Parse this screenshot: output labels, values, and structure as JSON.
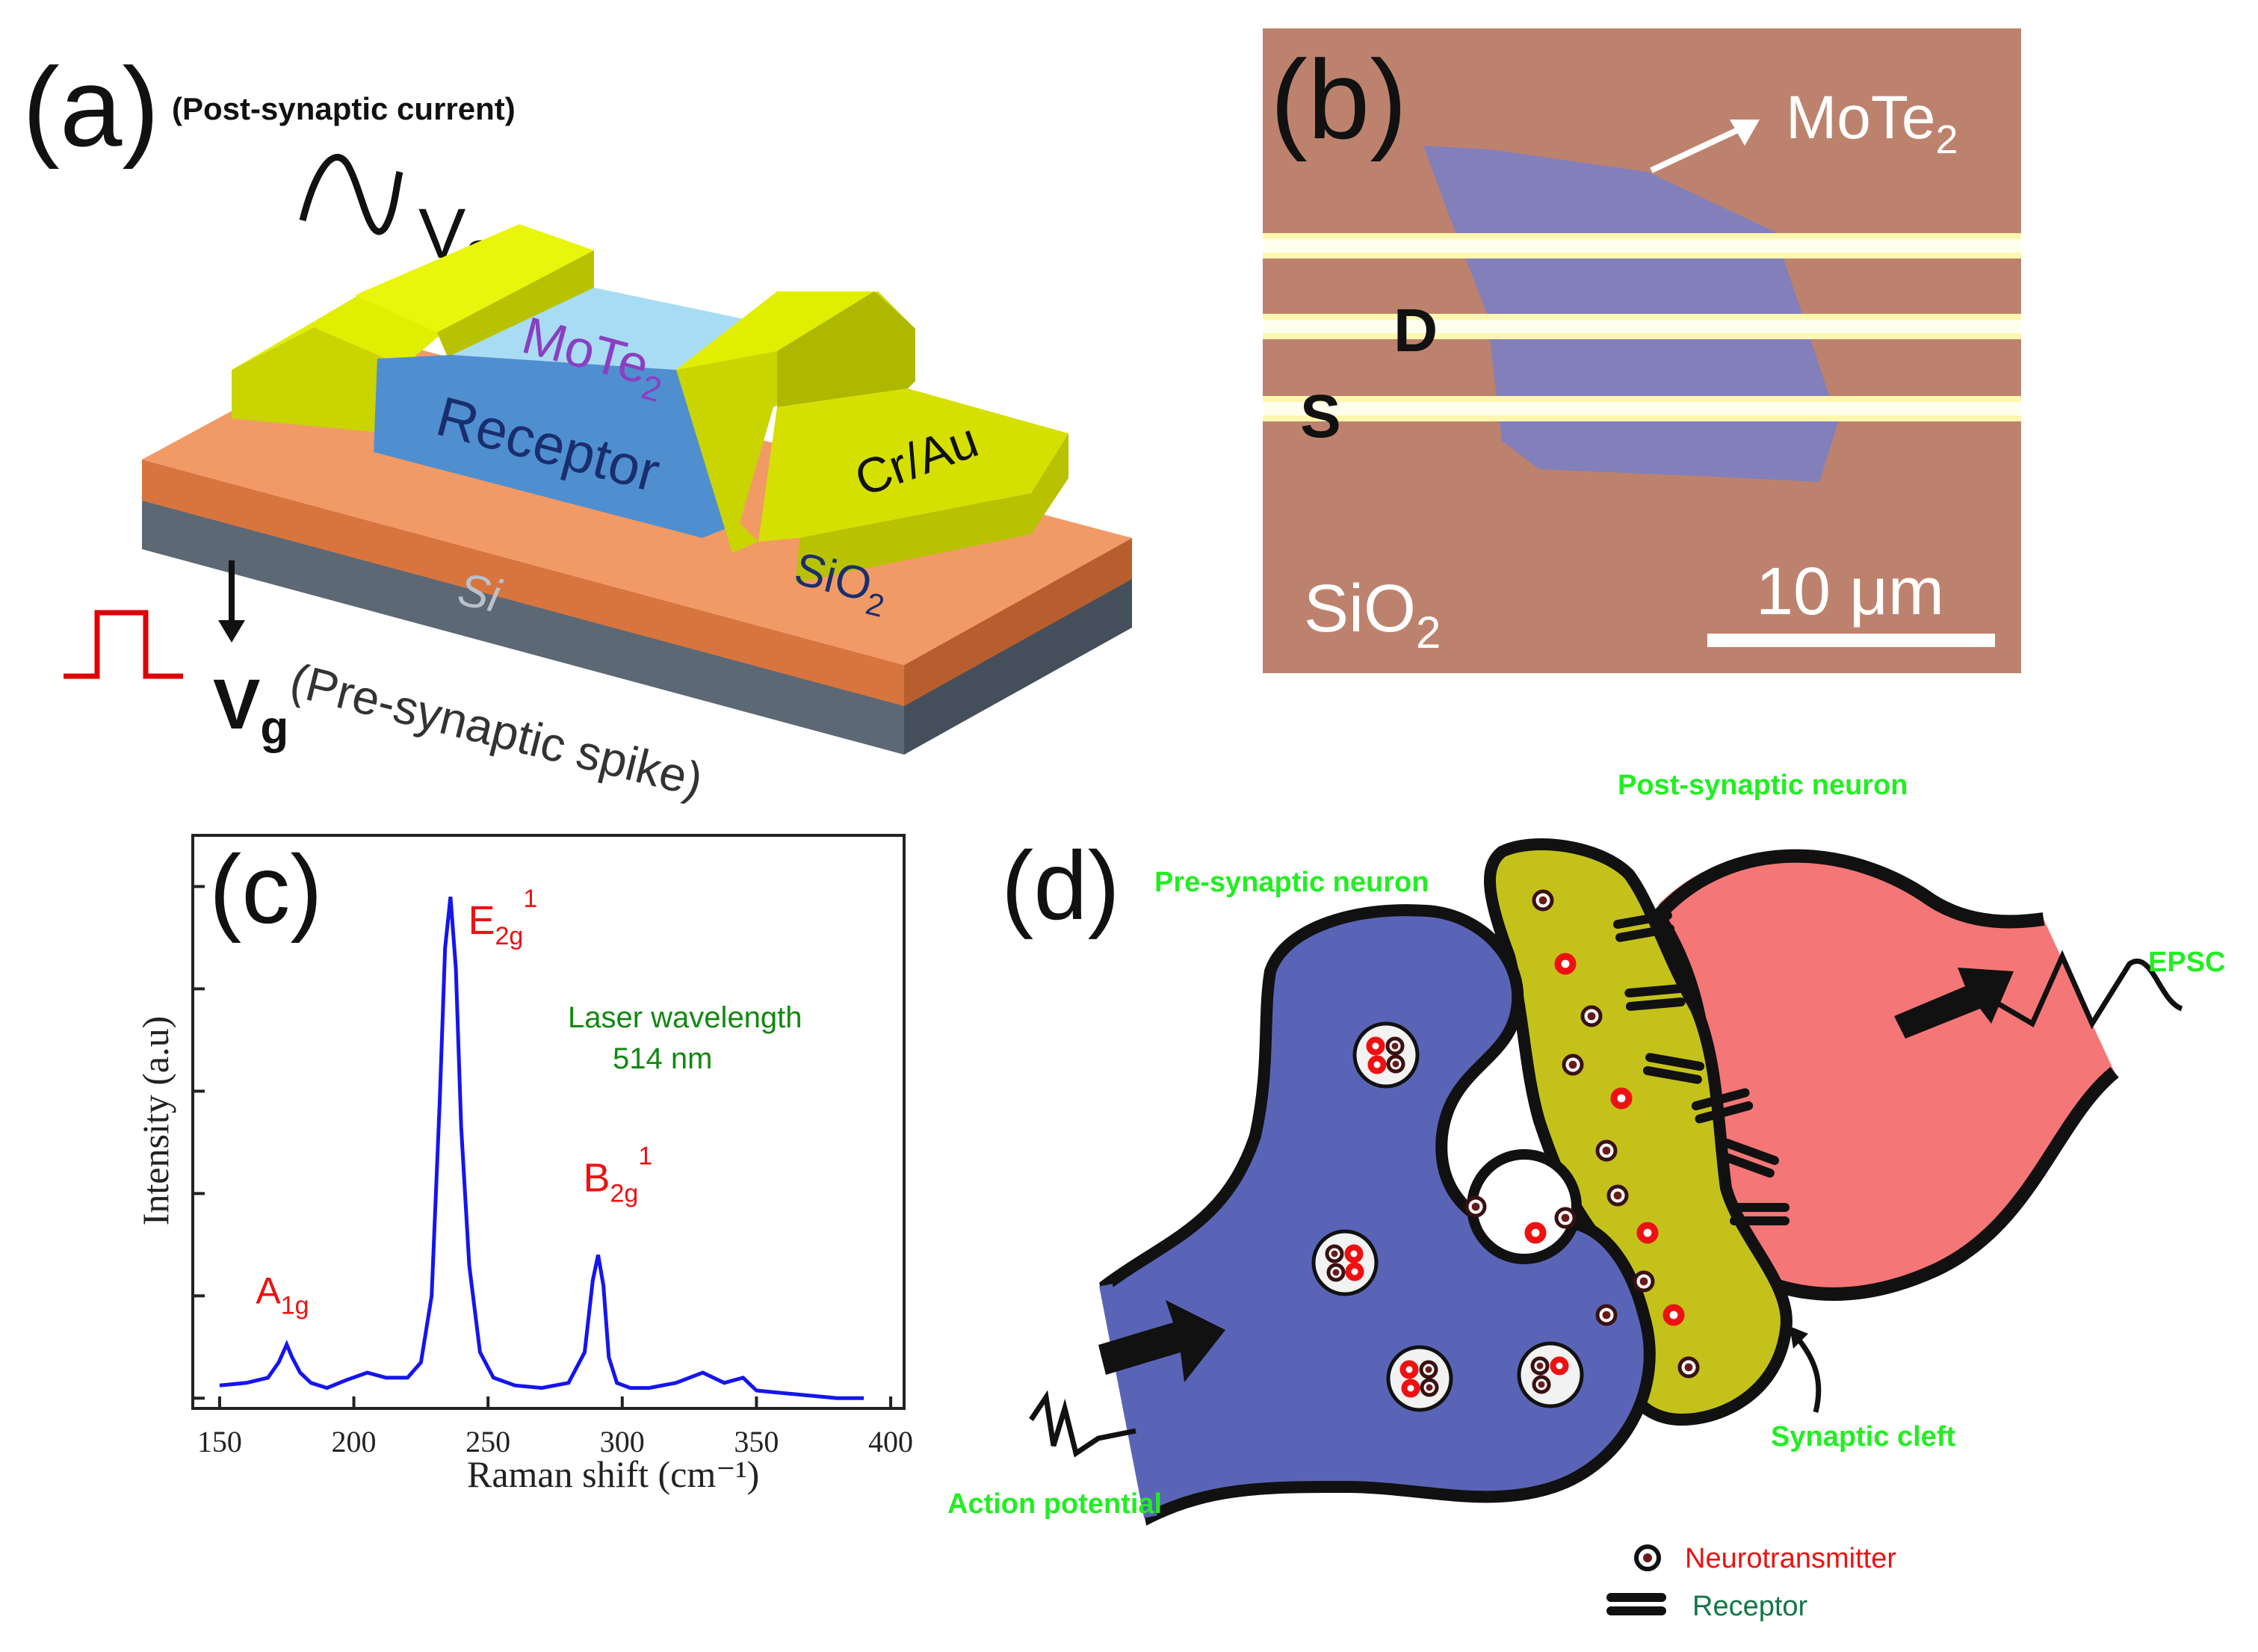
{
  "panel_a": {
    "label": "(a)",
    "post_synaptic_current": "(Post-synaptic current)",
    "vsd_v": "V",
    "vsd_sub": "SD",
    "channel_base": "MoTe",
    "channel_sub": "2",
    "receptor": "Receptor",
    "contact": "Cr/Au",
    "si": "Si",
    "sio2_base": "SiO",
    "sio2_sub": "2",
    "vg_v": "V",
    "vg_sub": "g",
    "pre_synaptic_spike": "(Pre-synaptic spike)"
  },
  "panel_b": {
    "label": "(b)",
    "flake_base": "MoTe",
    "flake_sub": "2",
    "drain": "D",
    "source": "S",
    "substrate_base": "SiO",
    "substrate_sub": "2",
    "scale_bar": "10 μm"
  },
  "panel_c": {
    "label": "(c)",
    "laser_line1": "Laser wavelength",
    "laser_line2": "514 nm",
    "peaks": [
      {
        "base": "A",
        "sub": "1g",
        "sup": ""
      },
      {
        "base": "E",
        "sub": "2g",
        "sup": "1"
      },
      {
        "base": "B",
        "sub": "2g",
        "sup": "1"
      }
    ]
  },
  "panel_d": {
    "label": "(d)",
    "post_neuron": "Post-synaptic neuron",
    "pre_neuron": "Pre-synaptic neuron",
    "epsc": "EPSC",
    "synaptic_cleft": "Synaptic cleft",
    "action_potential": "Action potential",
    "legend_neurotransmitter": "Neurotransmitter",
    "legend_receptor": "Receptor"
  },
  "colors": {
    "spectrum": "#1515ee",
    "peak_label": "#ee1111",
    "laser_text": "#118811",
    "neuron_label": "#22ee22",
    "pre_neuron_fill": "#5a64b6",
    "post_neuron_fill": "#f57676",
    "cleft_fill": "#c4c21a"
  },
  "chart_data": {
    "type": "line",
    "title": "",
    "xlabel": "Raman shift (cm⁻¹)",
    "ylabel": "Intensity (a.u)",
    "xlim": [
      140,
      405
    ],
    "ylim": [
      0,
      1.12
    ],
    "xticks": [
      150,
      200,
      250,
      300,
      350,
      400
    ],
    "yticks_unlabeled": 6,
    "series": [
      {
        "name": "Raman spectrum",
        "x": [
          150,
          160,
          168,
          172,
          175,
          177,
          180,
          184,
          190,
          197,
          205,
          212,
          220,
          225,
          229,
          232,
          234,
          236,
          238,
          240,
          243,
          247,
          252,
          260,
          270,
          280,
          286,
          289,
          291,
          293,
          295,
          298,
          303,
          310,
          320,
          330,
          338,
          345,
          350,
          360,
          370,
          380,
          390
        ],
        "values": [
          0.045,
          0.05,
          0.06,
          0.09,
          0.125,
          0.1,
          0.07,
          0.05,
          0.04,
          0.055,
          0.07,
          0.06,
          0.06,
          0.09,
          0.22,
          0.6,
          0.9,
          1.0,
          0.86,
          0.55,
          0.28,
          0.11,
          0.06,
          0.045,
          0.04,
          0.05,
          0.11,
          0.25,
          0.3,
          0.24,
          0.1,
          0.05,
          0.04,
          0.04,
          0.05,
          0.07,
          0.05,
          0.06,
          0.035,
          0.03,
          0.025,
          0.02,
          0.02
        ]
      }
    ],
    "peak_positions": [
      176,
      237,
      291
    ],
    "annotations": [
      "A1g",
      "E2g1",
      "B2g1",
      "Laser wavelength 514 nm"
    ]
  }
}
